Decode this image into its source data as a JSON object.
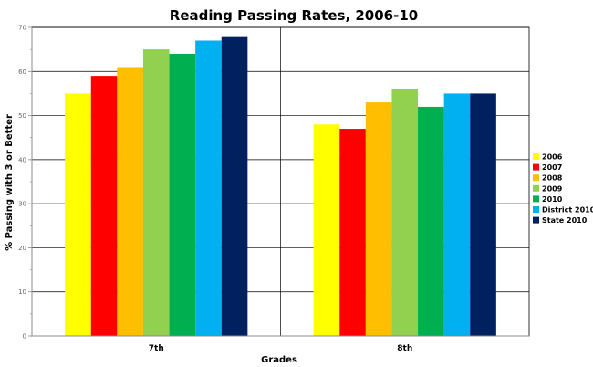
{
  "chart_data": {
    "type": "bar",
    "title": "Reading Passing Rates, 2006-10",
    "xlabel": "Grades",
    "ylabel": "% Passing with 3 or Better",
    "ylim": [
      0,
      70
    ],
    "yticks": [
      0,
      10,
      20,
      30,
      40,
      50,
      60,
      70
    ],
    "grid": true,
    "legend_position": "right",
    "categories": [
      "7th",
      "8th"
    ],
    "series": [
      {
        "name": "2006",
        "color": "#ffff00",
        "values": [
          55,
          48
        ]
      },
      {
        "name": "2007",
        "color": "#ff0000",
        "values": [
          59,
          47
        ]
      },
      {
        "name": "2008",
        "color": "#ffbf00",
        "values": [
          61,
          53
        ]
      },
      {
        "name": "2009",
        "color": "#92d050",
        "values": [
          65,
          56
        ]
      },
      {
        "name": "2010",
        "color": "#00b050",
        "values": [
          64,
          52
        ]
      },
      {
        "name": "District 2010",
        "color": "#00b0f0",
        "values": [
          67,
          55
        ]
      },
      {
        "name": "State 2010",
        "color": "#002060",
        "values": [
          68,
          55
        ]
      }
    ]
  }
}
